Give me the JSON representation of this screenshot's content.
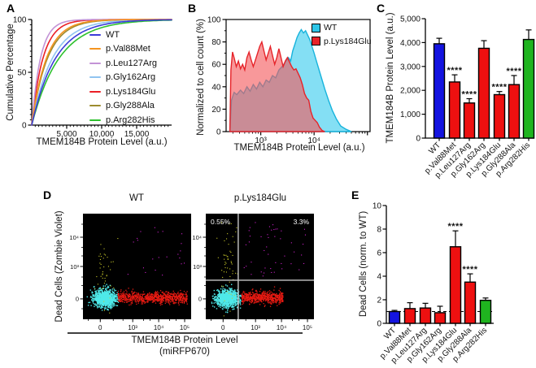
{
  "figure": {
    "background": "#ffffff"
  },
  "panels": {
    "A": {
      "label": "A"
    },
    "B": {
      "label": "B"
    },
    "C": {
      "label": "C"
    },
    "D": {
      "label": "D"
    },
    "E": {
      "label": "E"
    }
  },
  "palette": {
    "axis": "#000000",
    "bar_blue": "#1414E0",
    "bar_red": "#EE1010",
    "bar_green": "#1FB41F",
    "error_bar": "#000000"
  },
  "chart_data": [
    {
      "id": "A",
      "type": "line",
      "subtype": "cumulative-distribution",
      "xlabel": "TMEM184B Protein Level (a.u.)",
      "ylabel": "Cumulative Percentage",
      "xlim": [
        0,
        20000
      ],
      "ylim": [
        0,
        100
      ],
      "xticks": [
        {
          "v": 5000,
          "label": "5,000"
        },
        {
          "v": 10000,
          "label": "10,000"
        },
        {
          "v": 15000,
          "label": "15,000"
        }
      ],
      "x_minor_step": 500,
      "yticks": [
        {
          "v": 0,
          "label": "0"
        },
        {
          "v": 50,
          "label": "50"
        },
        {
          "v": 100,
          "label": "100"
        }
      ],
      "y_minor_step": 5,
      "curve_model": "y = 100*(1-exp(-x/tau))",
      "legend_position": "right-inside",
      "series": [
        {
          "name": "WT",
          "color": "#3B3BD8",
          "tau": 3400
        },
        {
          "name": "p.Val88Met",
          "color": "#F5941F",
          "tau": 2100
        },
        {
          "name": "p.Leu127Arg",
          "color": "#C393D6",
          "tau": 1250
        },
        {
          "name": "p.Gly162Arg",
          "color": "#90C4F0",
          "tau": 2950
        },
        {
          "name": "p.Lys184Glu",
          "color": "#EB1F26",
          "tau": 1600
        },
        {
          "name": "p.Gly288Ala",
          "color": "#9C8B2E",
          "tau": 2250
        },
        {
          "name": "p.Arg282His",
          "color": "#2EC12E",
          "tau": 3900
        }
      ]
    },
    {
      "id": "B",
      "type": "area",
      "subtype": "flow-histogram-overlay",
      "xlabel": "TMEM184B Protein Level (a.u.)",
      "ylabel": "Normalized to cell count (%)",
      "xscale": "log",
      "xlim_log10": [
        2.35,
        5.05
      ],
      "ylim": [
        0,
        100
      ],
      "xticks": [
        {
          "log10": 3,
          "label": "10³"
        },
        {
          "log10": 4,
          "label": "10⁴"
        }
      ],
      "yticks": [
        {
          "v": 0,
          "label": "0"
        },
        {
          "v": 20,
          "label": "20"
        },
        {
          "v": 40,
          "label": "40"
        },
        {
          "v": 60,
          "label": "60"
        },
        {
          "v": 80,
          "label": "80"
        },
        {
          "v": 100,
          "label": "100"
        }
      ],
      "legend_position": "top-right-inside",
      "series": [
        {
          "name": "WT",
          "fill": "#45CFEE",
          "stroke": "#17B3DC",
          "legend_swatch": "#2EC6E8",
          "points": [
            [
              2.42,
              0
            ],
            [
              2.45,
              28
            ],
            [
              2.5,
              35
            ],
            [
              2.55,
              33
            ],
            [
              2.62,
              37
            ],
            [
              2.68,
              34
            ],
            [
              2.74,
              40
            ],
            [
              2.8,
              36
            ],
            [
              2.86,
              42
            ],
            [
              2.92,
              38
            ],
            [
              2.98,
              44
            ],
            [
              3.04,
              40
            ],
            [
              3.1,
              46
            ],
            [
              3.16,
              44
            ],
            [
              3.22,
              50
            ],
            [
              3.28,
              48
            ],
            [
              3.34,
              55
            ],
            [
              3.4,
              58
            ],
            [
              3.46,
              62
            ],
            [
              3.52,
              66
            ],
            [
              3.56,
              63
            ],
            [
              3.6,
              72
            ],
            [
              3.64,
              78
            ],
            [
              3.68,
              84
            ],
            [
              3.72,
              88
            ],
            [
              3.76,
              91
            ],
            [
              3.8,
              88
            ],
            [
              3.84,
              90
            ],
            [
              3.88,
              86
            ],
            [
              3.92,
              82
            ],
            [
              3.96,
              76
            ],
            [
              4.0,
              70
            ],
            [
              4.05,
              62
            ],
            [
              4.1,
              54
            ],
            [
              4.15,
              46
            ],
            [
              4.2,
              38
            ],
            [
              4.27,
              28
            ],
            [
              4.34,
              19
            ],
            [
              4.42,
              11
            ],
            [
              4.5,
              5
            ],
            [
              4.6,
              2
            ],
            [
              4.7,
              0
            ]
          ]
        },
        {
          "name": "p.Lys184Glu",
          "fill": "#F3595C",
          "stroke": "#E62329",
          "legend_swatch": "#E82329",
          "points": [
            [
              2.42,
              0
            ],
            [
              2.44,
              55
            ],
            [
              2.47,
              71
            ],
            [
              2.5,
              66
            ],
            [
              2.54,
              58
            ],
            [
              2.58,
              63
            ],
            [
              2.62,
              56
            ],
            [
              2.66,
              60
            ],
            [
              2.7,
              55
            ],
            [
              2.74,
              66
            ],
            [
              2.78,
              71
            ],
            [
              2.82,
              64
            ],
            [
              2.86,
              58
            ],
            [
              2.9,
              64
            ],
            [
              2.94,
              70
            ],
            [
              2.98,
              76
            ],
            [
              3.02,
              80
            ],
            [
              3.06,
              72
            ],
            [
              3.1,
              64
            ],
            [
              3.14,
              70
            ],
            [
              3.18,
              76
            ],
            [
              3.22,
              68
            ],
            [
              3.26,
              60
            ],
            [
              3.3,
              66
            ],
            [
              3.34,
              74
            ],
            [
              3.38,
              66
            ],
            [
              3.42,
              58
            ],
            [
              3.46,
              63
            ],
            [
              3.5,
              66
            ],
            [
              3.54,
              62
            ],
            [
              3.58,
              58
            ],
            [
              3.62,
              55
            ],
            [
              3.66,
              56
            ],
            [
              3.7,
              52
            ],
            [
              3.74,
              48
            ],
            [
              3.78,
              42
            ],
            [
              3.82,
              34
            ],
            [
              3.86,
              30
            ],
            [
              3.9,
              28
            ],
            [
              3.94,
              18
            ],
            [
              3.98,
              12
            ],
            [
              4.02,
              10
            ],
            [
              4.06,
              8
            ],
            [
              4.1,
              4
            ],
            [
              4.15,
              1
            ],
            [
              4.2,
              0
            ]
          ]
        }
      ]
    },
    {
      "id": "C",
      "type": "bar",
      "ylabel": "TMEM184B Protein Level (a.u.)",
      "ylim": [
        0,
        5000
      ],
      "yticks": [
        {
          "v": 0,
          "label": "0"
        },
        {
          "v": 1000,
          "label": "1,000"
        },
        {
          "v": 2000,
          "label": "2,000"
        },
        {
          "v": 3000,
          "label": "3,000"
        },
        {
          "v": 4000,
          "label": "4,000"
        },
        {
          "v": 5000,
          "label": "5,000"
        }
      ],
      "categories": [
        "WT",
        "p.Val88Met",
        "p.Leu127Arg",
        "p.Gly162Arg",
        "p.Lys184Glu",
        "p.Gly288Ala",
        "p.Arg282His"
      ],
      "values": [
        3950,
        2350,
        1470,
        3760,
        1820,
        2240,
        4130
      ],
      "errors": [
        230,
        300,
        180,
        320,
        130,
        380,
        400
      ],
      "colors": [
        "#1414E0",
        "#EE1010",
        "#EE1010",
        "#EE1010",
        "#EE1010",
        "#EE1010",
        "#1FB41F"
      ],
      "sig": [
        "",
        "****",
        "****",
        "",
        "****",
        "****",
        ""
      ]
    },
    {
      "id": "D",
      "type": "scatter",
      "subtype": "flow-cytometry-dot-plot",
      "ylabel": "Dead Cells (Zombie Violet)",
      "xlabel_line1": "TMEM184B Protein Level",
      "xlabel_line2": "(miRFP670)",
      "xticks": [
        {
          "f": 0.16,
          "label": "0"
        },
        {
          "f": 0.46,
          "label": "10³"
        },
        {
          "f": 0.7,
          "label": "10⁴"
        },
        {
          "f": 0.94,
          "label": "10⁵"
        }
      ],
      "yticks": [
        {
          "f": 0.807,
          "label": "0"
        },
        {
          "f": 0.5,
          "label": "10³"
        },
        {
          "f": 0.223,
          "label": "10⁴"
        }
      ],
      "background": "#000000",
      "quad_line_color": "#C9C9C9",
      "quad_label_color": "#FFFFFF",
      "plots": [
        {
          "title": "WT",
          "quadrants": false,
          "clusters": [
            {
              "type": "gauss",
              "n": 1000,
              "cx": 0.2,
              "cy": 0.8,
              "sx": 0.052,
              "sy": 0.04,
              "color": "#4FE9E9",
              "size": 1.4
            },
            {
              "type": "hband",
              "n": 750,
              "x0": 0.32,
              "x1": 0.96,
              "cy": 0.79,
              "sy": 0.026,
              "color": "#EA1A12",
              "size": 1.3
            },
            {
              "type": "gauss",
              "n": 40,
              "cx": 0.2,
              "cy": 0.55,
              "sx": 0.04,
              "sy": 0.16,
              "color": "#C9C92A",
              "size": 1.1
            },
            {
              "type": "uniform",
              "n": 22,
              "x0": 0.41,
              "x1": 0.97,
              "y0": 0.1,
              "y1": 0.62,
              "color": "#CC22CC",
              "size": 1.1
            }
          ]
        },
        {
          "title": "p.Lys184Glu",
          "quadrants": true,
          "quad_v": 0.3,
          "quad_h": 0.63,
          "quad_labels": {
            "top_left": "0.55%",
            "top_right": "3.3%"
          },
          "clusters": [
            {
              "type": "gauss",
              "n": 1000,
              "cx": 0.195,
              "cy": 0.8,
              "sx": 0.052,
              "sy": 0.04,
              "color": "#4FE9E9",
              "size": 1.4
            },
            {
              "type": "hband",
              "n": 560,
              "x0": 0.33,
              "x1": 0.71,
              "cy": 0.79,
              "sy": 0.028,
              "color": "#EA1A12",
              "size": 1.3
            },
            {
              "type": "gauss",
              "n": 55,
              "cx": 0.2,
              "cy": 0.5,
              "sx": 0.045,
              "sy": 0.19,
              "color": "#C9C92A",
              "size": 1.1
            },
            {
              "type": "uniform",
              "n": 45,
              "x0": 0.34,
              "x1": 0.92,
              "y0": 0.08,
              "y1": 0.6,
              "color": "#CC22CC",
              "size": 1.1
            }
          ]
        }
      ]
    },
    {
      "id": "E",
      "type": "bar",
      "ylabel": "Dead Cells (norm. to WT)",
      "ylim": [
        0,
        10
      ],
      "yticks": [
        {
          "v": 0,
          "label": "0"
        },
        {
          "v": 2,
          "label": "2"
        },
        {
          "v": 4,
          "label": "4"
        },
        {
          "v": 6,
          "label": "6"
        },
        {
          "v": 8,
          "label": "8"
        },
        {
          "v": 10,
          "label": "10"
        }
      ],
      "categories": [
        "WT",
        "p.Val88Met",
        "p.Leu127Arg",
        "p.Gly162Arg",
        "p.Lys184Glu",
        "p.Gly288Ala",
        "p.Arg282His"
      ],
      "values": [
        1.0,
        1.25,
        1.3,
        0.9,
        6.5,
        3.5,
        1.95
      ],
      "errors": [
        0.1,
        0.5,
        0.4,
        0.55,
        1.35,
        0.7,
        0.2
      ],
      "colors": [
        "#1414E0",
        "#EE1010",
        "#EE1010",
        "#EE1010",
        "#EE1010",
        "#EE1010",
        "#1FB41F"
      ],
      "sig": [
        "",
        "",
        "",
        "",
        "****",
        "****",
        ""
      ],
      "dashed_line_y": 1
    }
  ]
}
